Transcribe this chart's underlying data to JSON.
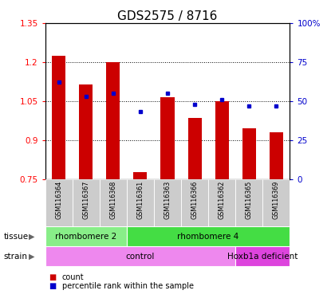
{
  "title": "GDS2575 / 8716",
  "samples": [
    "GSM116364",
    "GSM116367",
    "GSM116368",
    "GSM116361",
    "GSM116363",
    "GSM116366",
    "GSM116362",
    "GSM116365",
    "GSM116369"
  ],
  "counts": [
    1.225,
    1.115,
    1.2,
    0.775,
    1.065,
    0.985,
    1.05,
    0.945,
    0.93
  ],
  "percentile_ranks": [
    62,
    53,
    55,
    43,
    55,
    48,
    51,
    47,
    47
  ],
  "ylim_left": [
    0.75,
    1.35
  ],
  "ylim_right": [
    0,
    100
  ],
  "yticks_left": [
    0.75,
    0.9,
    1.05,
    1.2,
    1.35
  ],
  "ytick_labels_left": [
    "0.75",
    "0.9",
    "1.05",
    "1.2",
    "1.35"
  ],
  "yticks_right": [
    0,
    25,
    50,
    75,
    100
  ],
  "ytick_labels_right": [
    "0",
    "25",
    "50",
    "75",
    "100%"
  ],
  "bar_color": "#cc0000",
  "dot_color": "#0000cc",
  "tissue_groups": [
    {
      "label": "rhombomere 2",
      "start": 0,
      "end": 3,
      "color": "#88ee88"
    },
    {
      "label": "rhombomere 4",
      "start": 3,
      "end": 9,
      "color": "#44dd44"
    }
  ],
  "strain_groups": [
    {
      "label": "control",
      "start": 0,
      "end": 7,
      "color": "#ee88ee"
    },
    {
      "label": "Hoxb1a deficient",
      "start": 7,
      "end": 9,
      "color": "#dd44dd"
    }
  ],
  "legend_count_label": "count",
  "legend_pct_label": "percentile rank within the sample",
  "bar_width": 0.5
}
